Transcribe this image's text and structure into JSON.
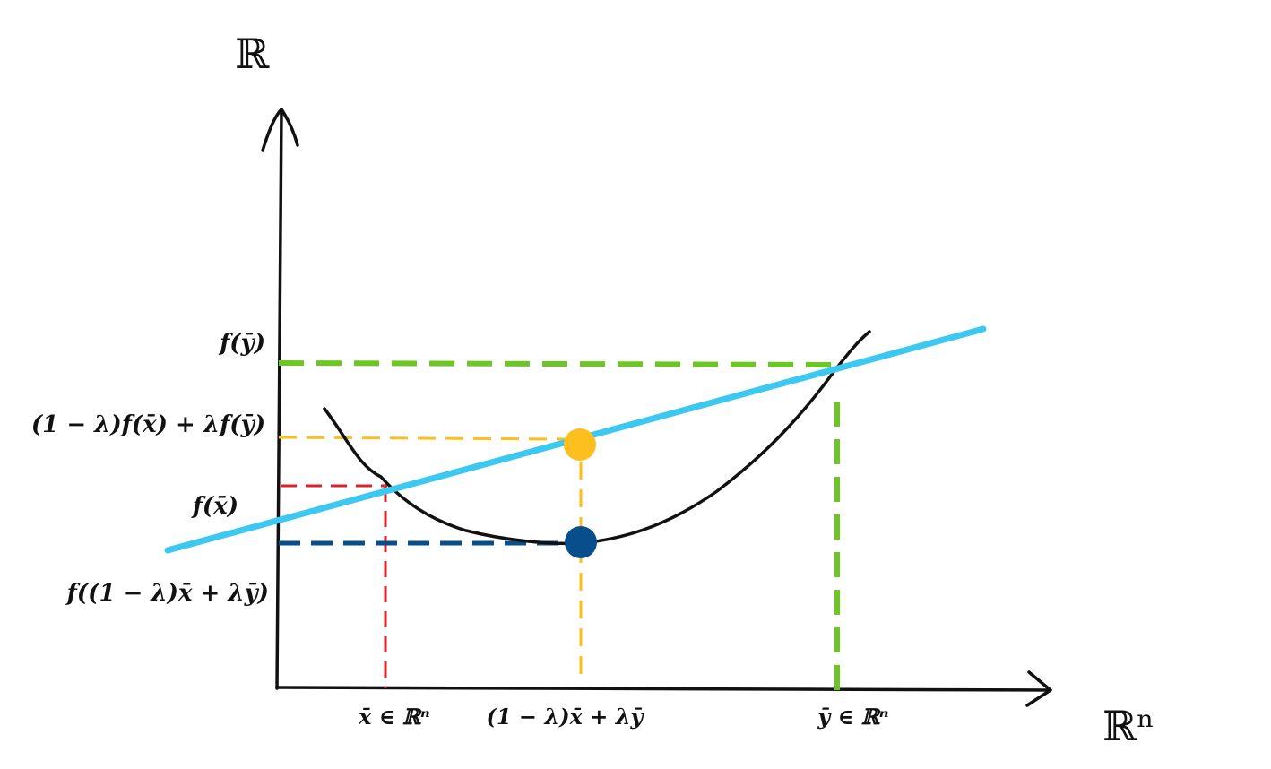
{
  "axes": {
    "y_axis_label": "ℝ",
    "x_axis_label": "ℝⁿ"
  },
  "labels": {
    "f_y": "f(ȳ)",
    "combo_value": "(1 − λ)f(x̄) + λf(ȳ)",
    "f_x": "f(x̄)",
    "f_combo": "f((1 − λ)x̄ + λȳ)",
    "x_tick": "x̄ ∈ ℝⁿ",
    "combo_tick": "(1 − λ)x̄ + λȳ",
    "y_tick": "ȳ ∈ ℝⁿ"
  },
  "colors": {
    "function_curve": "#111111",
    "secant_line": "#3cc8f0",
    "f_y_guide": "#6cc624",
    "combo_guide": "#fcbf1e",
    "f_x_guide": "#d8232a",
    "f_combo_guide": "#074e8c",
    "upper_point": "#fcbf1e",
    "lower_point": "#074e8c"
  }
}
